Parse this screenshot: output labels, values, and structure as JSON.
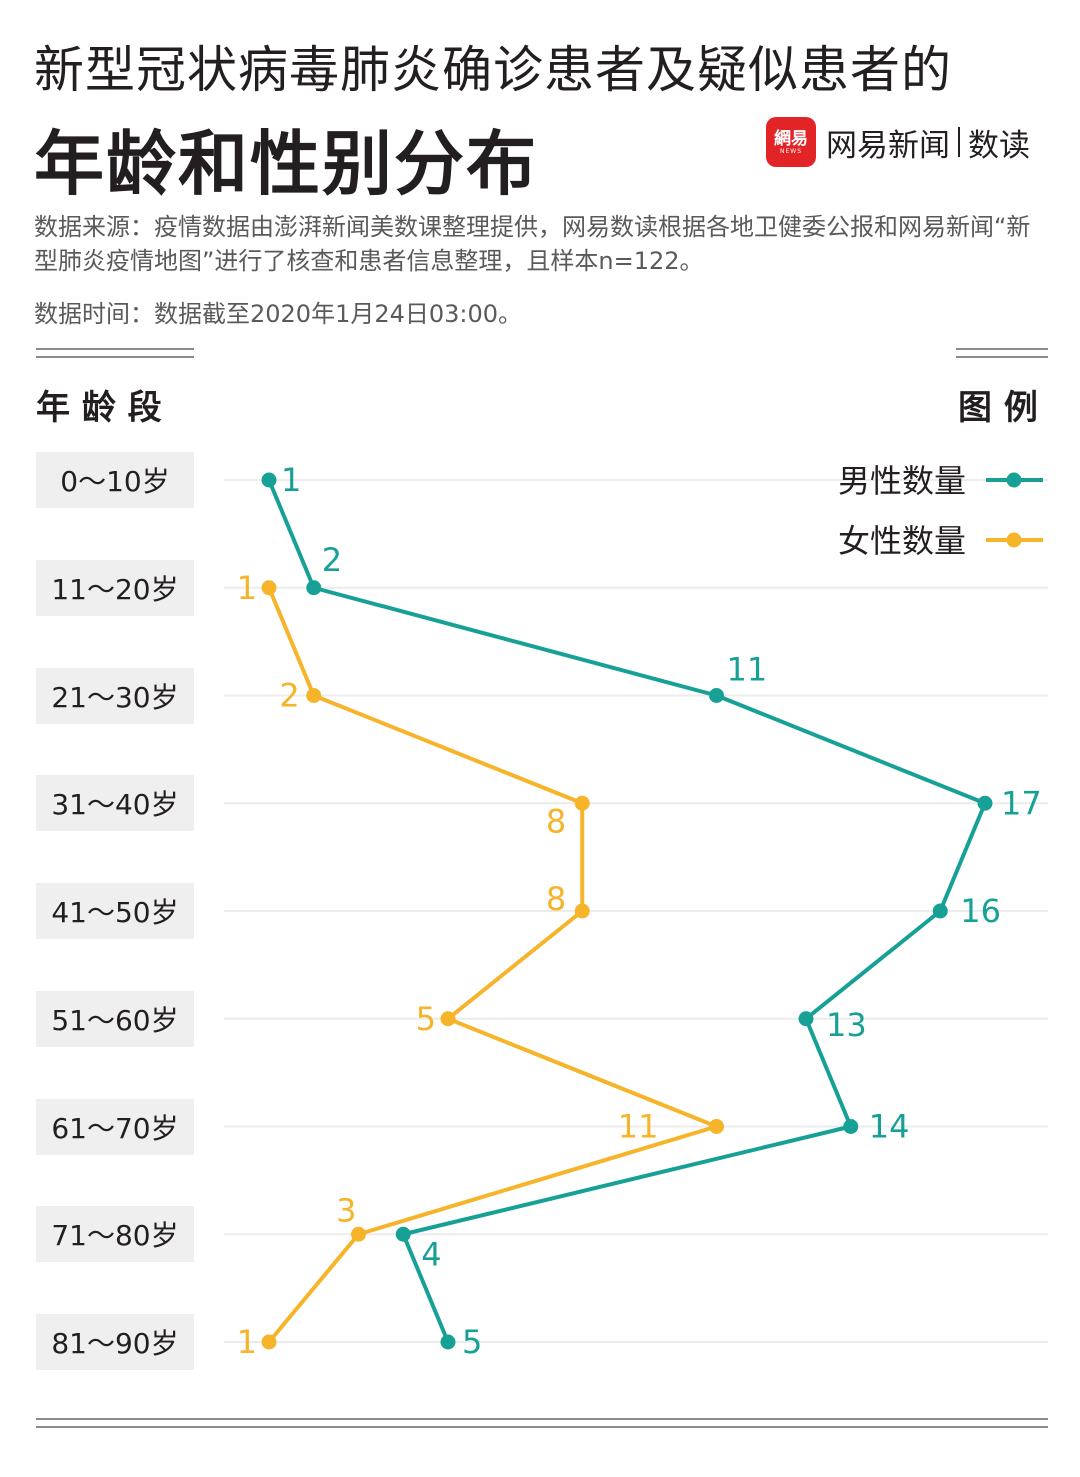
{
  "header": {
    "title_line1": "新型冠状病毒肺炎确诊患者及疑似患者的",
    "title_line2": "年龄和性别分布",
    "brand_logo": "網易",
    "brand_logo_sub": "NEWS",
    "brand_name": "网易新闻",
    "brand_sub": "数读",
    "source": "数据来源：疫情数据由澎湃新闻美数课整理提供，网易数读根据各地卫健委公报和网易新闻“新型肺炎疫情地图”进行了核查和患者信息整理，且样本n=122。",
    "data_time": "数据时间：数据截至2020年1月24日03:00。"
  },
  "labels": {
    "age_heading": "年 龄 段",
    "legend_heading": "图 例"
  },
  "colors": {
    "male": "#17a196",
    "female": "#f5b42a",
    "grid": "#ececec"
  },
  "chart_data": {
    "type": "line",
    "orientation": "horizontal",
    "categories": [
      "0～10岁",
      "11～20岁",
      "21～30岁",
      "31～40岁",
      "41～50岁",
      "51～60岁",
      "61～70岁",
      "71～80岁",
      "81～90岁"
    ],
    "series": [
      {
        "name": "男性数量",
        "values": [
          1,
          2,
          11,
          17,
          16,
          13,
          14,
          4,
          5
        ]
      },
      {
        "name": "女性数量",
        "values": [
          null,
          1,
          2,
          8,
          8,
          5,
          11,
          3,
          1
        ]
      }
    ],
    "xlim": [
      0,
      17
    ],
    "legend_position": "top-right"
  }
}
